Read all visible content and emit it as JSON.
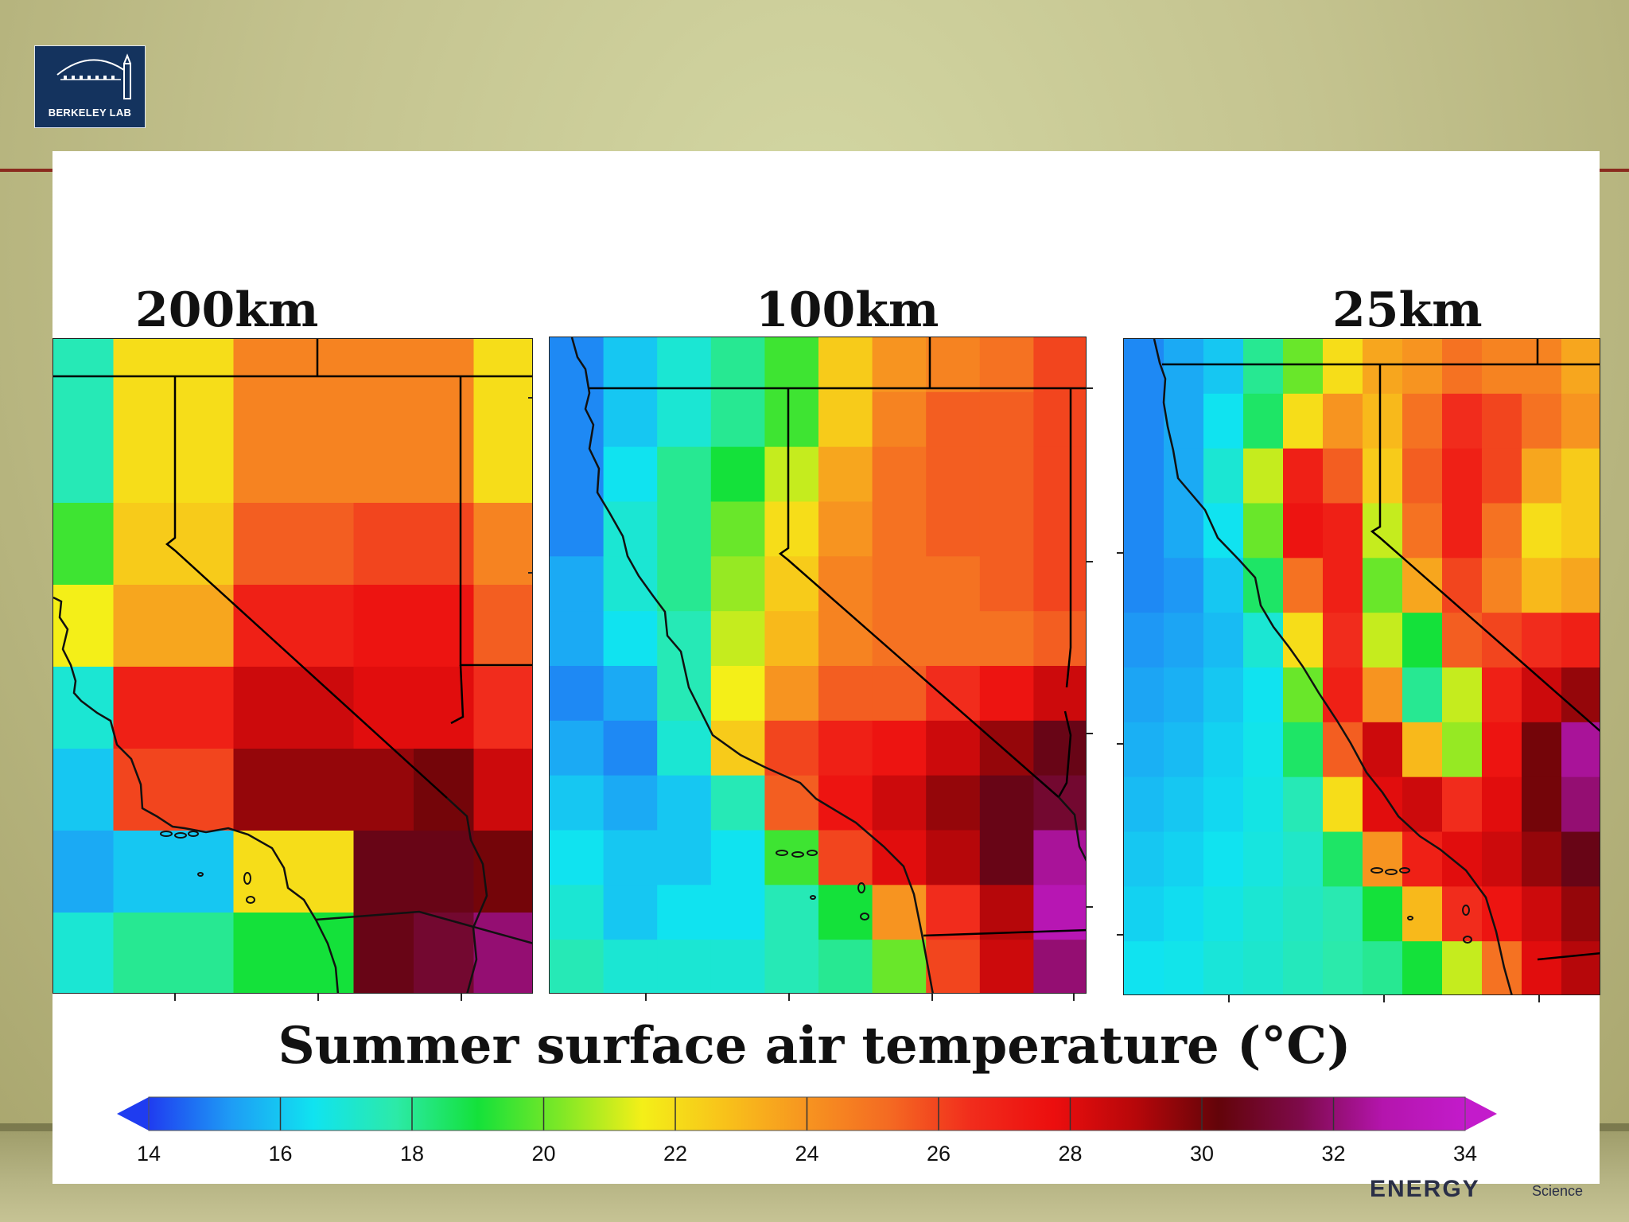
{
  "logo": {
    "text": "BERKELEY LAB"
  },
  "panels": [
    {
      "title": "200km",
      "grid": [
        [
          17.5,
          22,
          22,
          24.5,
          24.5,
          24.5,
          24.5,
          22
        ],
        [
          17.5,
          22,
          22,
          24.5,
          24.5,
          24.5,
          24.5,
          22
        ],
        [
          19.5,
          22.5,
          22.5,
          25.5,
          25.5,
          26,
          26,
          24.5
        ],
        [
          21.5,
          23.5,
          23.5,
          27,
          27,
          27.5,
          27.5,
          25.5
        ],
        [
          17,
          27,
          27,
          28.5,
          28.5,
          28,
          28,
          26.5
        ],
        [
          16,
          26,
          26,
          29.5,
          29.5,
          29.5,
          30,
          28.5
        ],
        [
          15.5,
          16,
          16,
          22,
          22,
          30.5,
          30.5,
          30
        ],
        [
          17,
          18,
          18,
          19,
          19,
          30.5,
          31,
          32
        ]
      ]
    },
    {
      "title": "100km",
      "grid": [
        [
          15,
          16,
          17,
          18,
          19.5,
          22.5,
          24,
          24.5,
          25,
          26
        ],
        [
          15,
          16,
          17,
          18,
          19.5,
          22.5,
          24.5,
          25.5,
          25.5,
          26
        ],
        [
          15,
          16.5,
          18,
          19,
          21,
          23.5,
          25,
          25.5,
          25.5,
          26
        ],
        [
          15,
          17,
          18,
          20,
          22,
          24,
          25,
          25.5,
          25.5,
          26
        ],
        [
          15.5,
          17,
          18,
          20.5,
          22.5,
          24.5,
          25,
          25,
          25.5,
          26
        ],
        [
          15.5,
          16.5,
          17.5,
          21,
          23,
          24.5,
          25,
          25,
          25,
          25.5
        ],
        [
          15,
          15.5,
          17.5,
          21.5,
          24,
          25.5,
          25.5,
          26.5,
          27.5,
          28.5
        ],
        [
          15.5,
          15,
          17,
          22.5,
          26,
          27,
          27.5,
          28.5,
          29.5,
          30.5
        ],
        [
          16,
          15.5,
          16,
          17.5,
          25.5,
          27.5,
          28.5,
          29.5,
          30.5,
          31
        ],
        [
          16.5,
          16,
          16,
          16.5,
          19.5,
          26,
          28,
          29,
          30.5,
          32.5
        ],
        [
          17,
          16,
          16.5,
          16.5,
          17.5,
          19,
          24,
          26.5,
          29,
          33
        ],
        [
          17.5,
          17,
          17,
          17,
          17.5,
          18,
          20,
          26,
          28.5,
          32
        ]
      ]
    },
    {
      "title": "25km",
      "grid": [
        [
          15,
          15.5,
          16,
          18,
          20,
          22,
          23.5,
          24,
          25,
          24.5,
          24.5,
          23.5
        ],
        [
          15,
          15.5,
          16.5,
          18.5,
          22,
          24,
          23,
          25,
          26.5,
          26,
          25,
          24
        ],
        [
          15,
          15.5,
          17,
          21,
          27,
          25.5,
          22.5,
          25.5,
          27,
          26,
          23.5,
          22.5
        ],
        [
          15,
          15.5,
          16.5,
          20,
          27.5,
          27,
          21,
          25,
          27,
          25,
          22,
          22.5
        ],
        [
          15,
          15.2,
          16,
          18.5,
          25,
          27,
          20,
          23.5,
          26,
          24.5,
          23,
          23.5
        ],
        [
          15.2,
          15.4,
          15.8,
          17,
          22,
          26.5,
          21,
          19,
          25.5,
          26,
          26.5,
          27
        ],
        [
          15.4,
          15.6,
          16,
          16.5,
          20,
          27,
          24,
          18,
          21,
          27,
          28.5,
          29.5
        ],
        [
          15.6,
          15.8,
          16.2,
          16.6,
          18.5,
          25.5,
          28.5,
          23,
          20.5,
          27.5,
          30,
          32.5
        ],
        [
          15.8,
          16,
          16.3,
          16.7,
          17.5,
          22,
          28,
          28.5,
          26.5,
          28,
          30,
          32
        ],
        [
          16,
          16.2,
          16.5,
          16.8,
          17.2,
          18.5,
          24,
          27,
          28,
          28.5,
          29.5,
          30.5
        ],
        [
          16.2,
          16.4,
          16.7,
          17,
          17.3,
          17.6,
          19,
          23,
          26.5,
          27.5,
          28.5,
          29.5
        ],
        [
          16.5,
          16.6,
          16.9,
          17.1,
          17.4,
          17.7,
          18,
          19,
          21,
          25,
          28,
          29
        ]
      ]
    }
  ],
  "caption": "Summer surface air temperature (°C)",
  "colorbar": {
    "ticks": [
      "14",
      "16",
      "18",
      "20",
      "22",
      "24",
      "26",
      "28",
      "30",
      "32",
      "34"
    ],
    "stops": [
      "#1f3cf0",
      "#1e9cf5",
      "#10e3f0",
      "#2ceaa8",
      "#14e13a",
      "#7ee826",
      "#f4ef18",
      "#f8c21a",
      "#f79420",
      "#f46a22",
      "#f12c1c",
      "#ec0e0e",
      "#b6070a",
      "#630409",
      "#7e0a4a",
      "#b415ad",
      "#c31bcb"
    ]
  },
  "footer": {
    "energy": "ENERGY",
    "science": "Science"
  }
}
